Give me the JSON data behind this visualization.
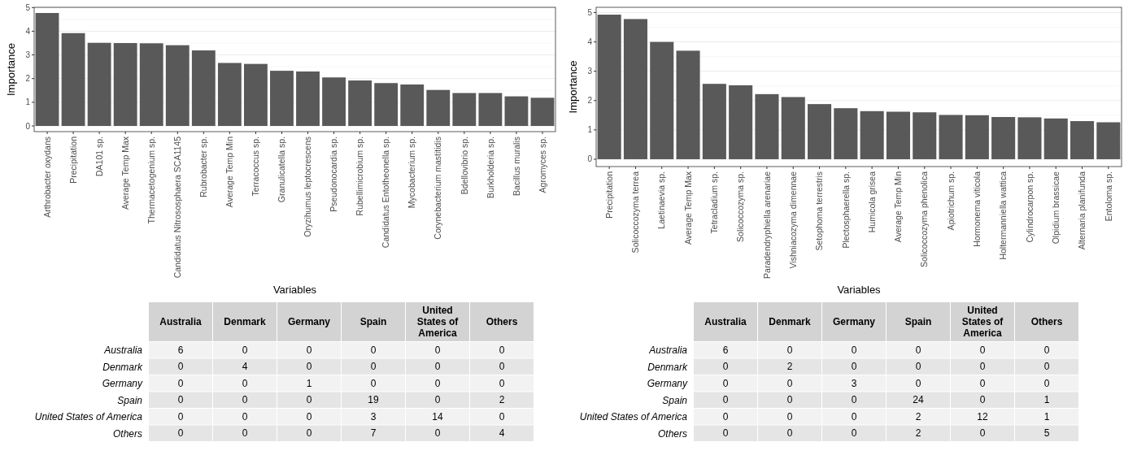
{
  "chart_data": [
    {
      "type": "bar",
      "xlabel": "Variables",
      "ylabel": "Importance",
      "categories": [
        "Arthrobacter oxydans",
        "Precipitation",
        "DA101 sp.",
        "Average Temp Max",
        "Thermacetogenium sp.",
        "Candidatus Nitrososphaera SCA1145",
        "Rubrobacter sp.",
        "Average Temp Min",
        "Terracoccus sp.",
        "Granulicatella sp.",
        "Oryzihumus leptocrescens",
        "Pseudonocardia sp.",
        "Rubellimicrobium sp.",
        "Candidatus Entotheonella sp.",
        "Mycobacterium sp.",
        "Corynebacterium mastitidis",
        "Bdellovibrio sp.",
        "Burkholderia sp.",
        "Bacillus muralis",
        "Agromyces sp."
      ],
      "values": [
        4.77,
        3.92,
        3.51,
        3.5,
        3.49,
        3.41,
        3.19,
        2.66,
        2.62,
        2.33,
        2.3,
        2.05,
        1.92,
        1.81,
        1.75,
        1.52,
        1.39,
        1.39,
        1.25,
        1.19
      ],
      "color": "#595959",
      "ylim": [
        -0.24,
        5.01
      ],
      "yticks": [
        0,
        1,
        2,
        3,
        4,
        5
      ],
      "grid": "y"
    },
    {
      "type": "bar",
      "xlabel": "Variables",
      "ylabel": "Importance",
      "categories": [
        "Precipitation",
        "Solicoccozyma terrea",
        "Laetinaevia sp.",
        "Average Temp Max",
        "Tetracladium sp.",
        "Solicoccozyma sp.",
        "Paradendryphiella arenariae",
        "Vishniacozyma dimennae",
        "Setophoma terrestris",
        "Plectosphaerella sp.",
        "Humicola grisea",
        "Average Temp Min",
        "Solicoccozyma phenolica",
        "Apiotrichum sp.",
        "Hormonema viticola",
        "Holtermanniella wattica",
        "Cylindrocarpon sp.",
        "Olpidium brassicae",
        "Alternaria planifunda",
        "Entoloma sp."
      ],
      "values": [
        4.93,
        4.78,
        4.0,
        3.7,
        2.57,
        2.52,
        2.22,
        2.12,
        1.88,
        1.74,
        1.64,
        1.62,
        1.6,
        1.51,
        1.5,
        1.44,
        1.43,
        1.39,
        1.3,
        1.26
      ],
      "color": "#595959",
      "ylim": [
        -0.25,
        5.18
      ],
      "yticks": [
        0,
        1,
        2,
        3,
        4,
        5
      ],
      "grid": "y"
    },
    {
      "type": "heatmap",
      "categories": [
        "Australia",
        "Denmark",
        "Germany",
        "Spain",
        "United States of America",
        "Others"
      ],
      "y_categories": [
        "Australia",
        "Denmark",
        "Germany",
        "Spain",
        "United States of America",
        "Others"
      ],
      "cells": [
        [
          6,
          0,
          0,
          0,
          0,
          0
        ],
        [
          0,
          4,
          0,
          0,
          0,
          0
        ],
        [
          0,
          0,
          1,
          0,
          0,
          0
        ],
        [
          0,
          0,
          0,
          19,
          0,
          2
        ],
        [
          0,
          0,
          0,
          3,
          14,
          0
        ],
        [
          0,
          0,
          0,
          7,
          0,
          4
        ]
      ],
      "data_labels": true
    },
    {
      "type": "heatmap",
      "categories": [
        "Australia",
        "Denmark",
        "Germany",
        "Spain",
        "United States of America",
        "Others"
      ],
      "y_categories": [
        "Australia",
        "Denmark",
        "Germany",
        "Spain",
        "United States of America",
        "Others"
      ],
      "cells": [
        [
          6,
          0,
          0,
          0,
          0,
          0
        ],
        [
          0,
          2,
          0,
          0,
          0,
          0
        ],
        [
          0,
          0,
          3,
          0,
          0,
          0
        ],
        [
          0,
          0,
          0,
          24,
          0,
          1
        ],
        [
          0,
          0,
          0,
          2,
          12,
          1
        ],
        [
          0,
          0,
          0,
          2,
          0,
          5
        ]
      ],
      "data_labels": true
    }
  ]
}
